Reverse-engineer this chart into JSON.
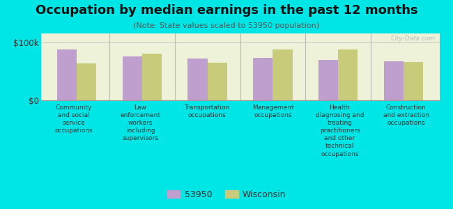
{
  "title": "Occupation by median earnings in the past 12 months",
  "subtitle": "(Note: State values scaled to 53950 population)",
  "background_color": "#00e5e5",
  "plot_bg_color": "#eef2d8",
  "categories": [
    "Community\nand social\nservice\noccupations",
    "Law\nenforcement\nworkers\nincluding\nsupervisors",
    "Transportation\noccupations",
    "Management\noccupations",
    "Health\ndiagnosing and\ntreating\npractitioners\nand other\ntechnical\noccupations",
    "Construction\nand extraction\noccupations"
  ],
  "series_53950": [
    87000,
    75000,
    72000,
    73000,
    70000,
    67000
  ],
  "series_wisconsin": [
    63000,
    80000,
    65000,
    88000,
    87000,
    66000
  ],
  "color_53950": "#bf9fce",
  "color_wisconsin": "#c8cc7a",
  "ylim": [
    0,
    115000
  ],
  "ytick_vals": [
    0,
    100000
  ],
  "ytick_labels": [
    "$0",
    "$100k"
  ],
  "legend_53950": "53950",
  "legend_wisconsin": "Wisconsin",
  "watermark": "City-Data.com",
  "title_fontsize": 13,
  "subtitle_fontsize": 8,
  "xlabel_fontsize": 6.5
}
